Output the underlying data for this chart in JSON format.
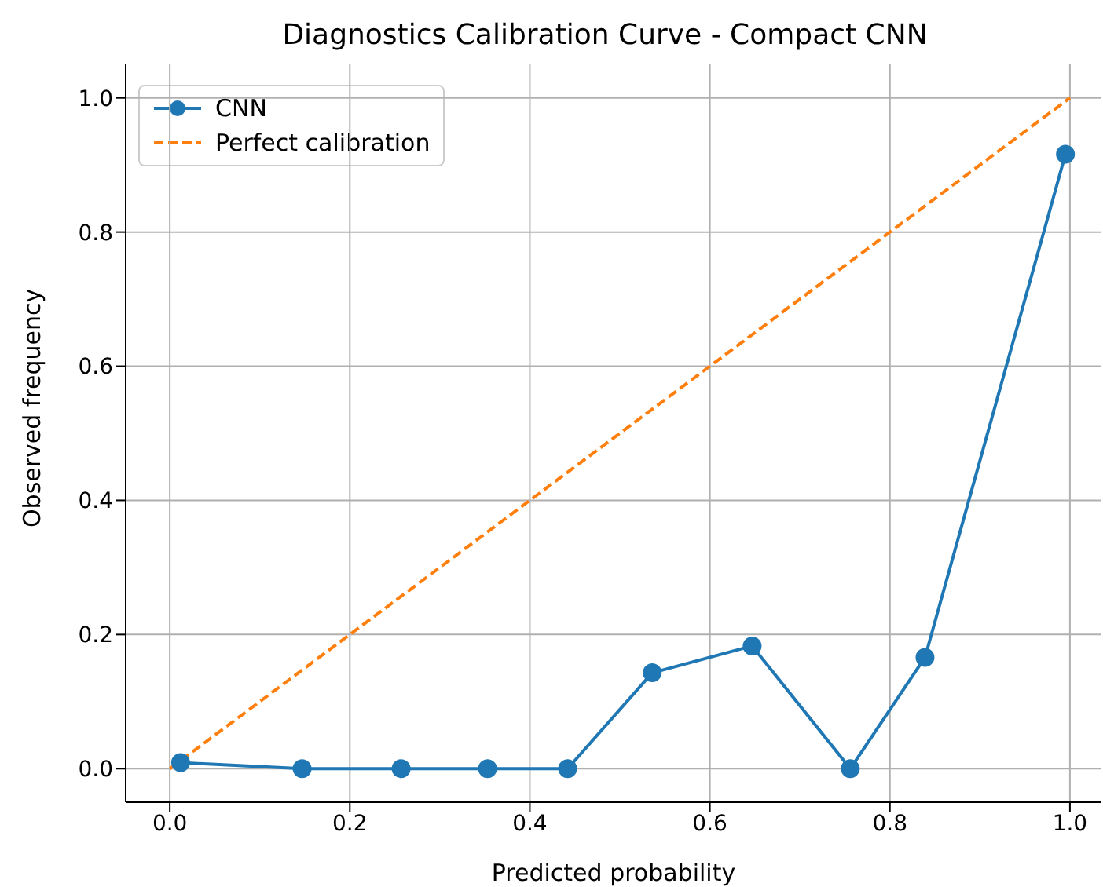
{
  "chart_data": {
    "type": "line",
    "title": "Diagnostics Calibration Curve - Compact CNN",
    "xlabel": "Predicted probability",
    "ylabel": "Observed frequency",
    "series": [
      {
        "name": "CNN",
        "color": "#1f77b4",
        "marker": "circle",
        "line_style": "solid",
        "x": [
          0.012,
          0.147,
          0.257,
          0.353,
          0.442,
          0.536,
          0.647,
          0.756,
          0.839,
          0.995
        ],
        "values": [
          0.009,
          0,
          0,
          0,
          0,
          0.143,
          0.183,
          0,
          0.166,
          0.916
        ]
      },
      {
        "name": "Perfect calibration",
        "color": "#ff7f0e",
        "marker": "none",
        "line_style": "dashed",
        "x": [
          0,
          1
        ],
        "values": [
          0,
          1
        ]
      }
    ],
    "xlim": [
      -0.049,
      1.035
    ],
    "ylim": [
      -0.05,
      1.05
    ],
    "xticks": [
      {
        "value": 0,
        "label": "0.0"
      },
      {
        "value": 0.2,
        "label": "0.2"
      },
      {
        "value": 0.4,
        "label": "0.4"
      },
      {
        "value": 0.6,
        "label": "0.6"
      },
      {
        "value": 0.8,
        "label": "0.8"
      },
      {
        "value": 1,
        "label": "1.0"
      }
    ],
    "yticks": [
      {
        "value": 0,
        "label": "0.0"
      },
      {
        "value": 0.2,
        "label": "0.2"
      },
      {
        "value": 0.4,
        "label": "0.4"
      },
      {
        "value": 0.6,
        "label": "0.6"
      },
      {
        "value": 0.8,
        "label": "0.8"
      },
      {
        "value": 1,
        "label": "1.0"
      }
    ],
    "grid": true,
    "legend": "top left"
  }
}
